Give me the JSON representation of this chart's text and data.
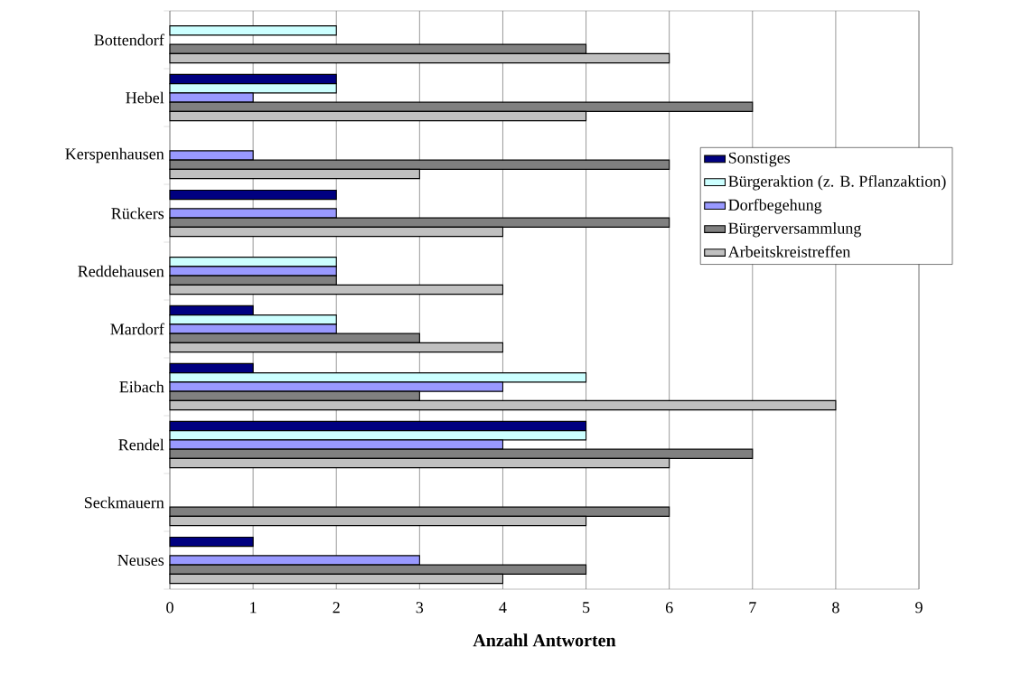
{
  "chart_data": {
    "type": "bar",
    "orientation": "horizontal",
    "xlabel": "Anzahl Antworten",
    "categories": [
      "Bottendorf",
      "Hebel",
      "Kerspenhausen",
      "Rückers",
      "Reddehausen",
      "Mardorf",
      "Eibach",
      "Rendel",
      "Seckmauern",
      "Neuses"
    ],
    "series": [
      {
        "name": "Sonstiges",
        "color": "#000080",
        "values": [
          null,
          2,
          null,
          2,
          null,
          1,
          1,
          5,
          null,
          1
        ]
      },
      {
        "name": "Bürgeraktion (z. B. Pflanzaktion)",
        "color": "#ccffff",
        "values": [
          2,
          2,
          null,
          null,
          2,
          2,
          5,
          5,
          null,
          null
        ]
      },
      {
        "name": "Dorfbegehung",
        "color": "#9999ff",
        "values": [
          null,
          1,
          1,
          2,
          2,
          2,
          4,
          4,
          null,
          3
        ]
      },
      {
        "name": "Bürgerversammlung",
        "color": "#808080",
        "values": [
          5,
          7,
          6,
          6,
          2,
          3,
          3,
          7,
          6,
          5
        ]
      },
      {
        "name": "Arbeitskreistreffen",
        "color": "#c0c0c0",
        "values": [
          6,
          5,
          3,
          4,
          4,
          4,
          8,
          6,
          5,
          4
        ]
      }
    ],
    "xlim": [
      0,
      9
    ],
    "xticks": [
      0,
      1,
      2,
      3,
      4,
      5,
      6,
      7,
      8,
      9
    ],
    "grid": "x",
    "legend": "right"
  }
}
